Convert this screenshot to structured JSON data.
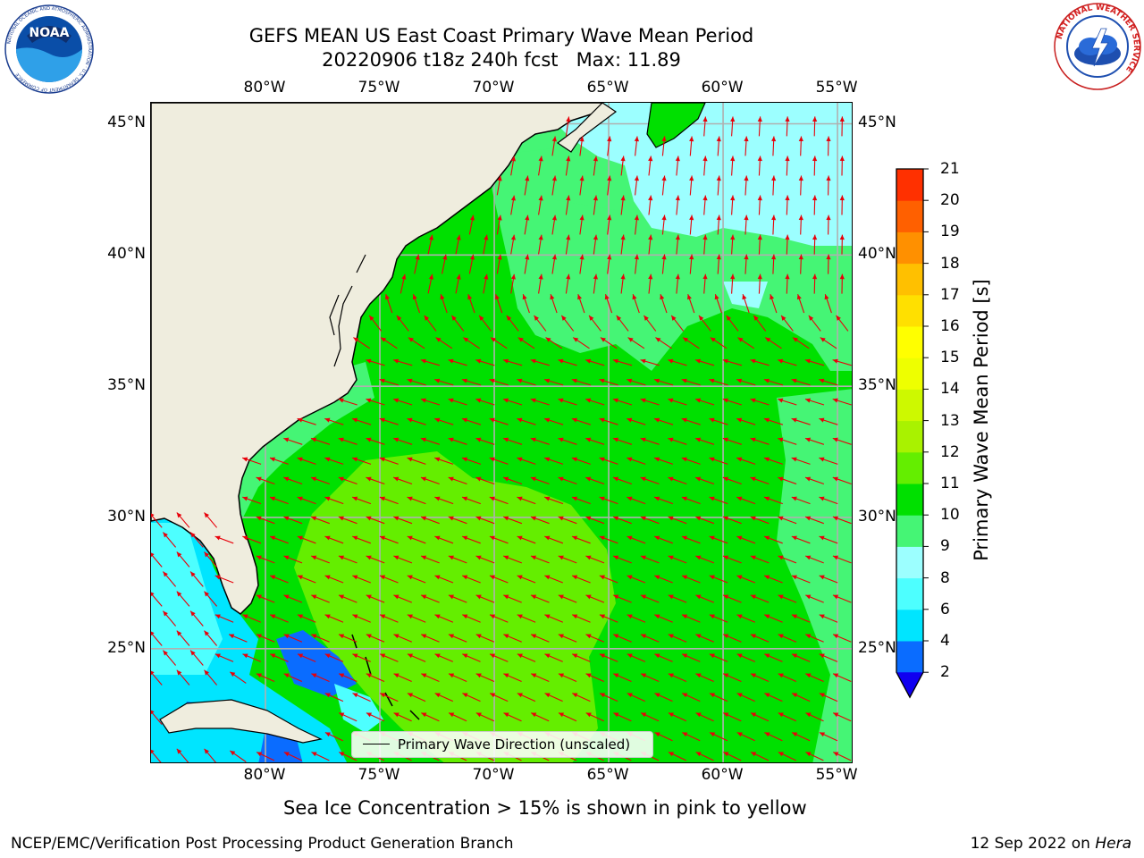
{
  "header": {
    "title_line1": "GEFS MEAN US East Coast Primary Wave Mean Period",
    "title_line2": "20220906 t18z 240h fcst   Max: 11.89"
  },
  "logos": {
    "noaa_text": "NOAA",
    "noaa_ring": "NATIONAL OCEANIC AND ATMOSPHERIC ADMINISTRATION · U.S. DEPARTMENT OF COMMERCE",
    "nws_ring": "NATIONAL WEATHER SERVICE"
  },
  "map": {
    "lon_labels": [
      "80°W",
      "75°W",
      "70°W",
      "65°W",
      "60°W",
      "55°W"
    ],
    "lat_labels": [
      "45°N",
      "40°N",
      "35°N",
      "30°N",
      "25°N"
    ],
    "lon_range": [
      -85,
      -54.3
    ],
    "lat_range": [
      20.6,
      45.8
    ],
    "colors": {
      "land": "#efedde",
      "grid": "#b0b0b0",
      "arrow": "#e8000a",
      "coast": "#000000"
    },
    "legend_label": "Primary Wave Direction (unscaled)"
  },
  "colorbar": {
    "title": "Primary Wave Mean Period [s]",
    "tick_labels": [
      "2",
      "4",
      "6",
      "8",
      "9",
      "10",
      "11",
      "12",
      "13",
      "14",
      "15",
      "16",
      "17",
      "18",
      "19",
      "20",
      "21"
    ],
    "colors": [
      "#0a6cff",
      "#00e5ff",
      "#4dffff",
      "#9cffff",
      "#45f575",
      "#00e000",
      "#64ee00",
      "#a9f200",
      "#cdf900",
      "#eeff00",
      "#ffff00",
      "#ffe000",
      "#ffc000",
      "#ff9000",
      "#ff6000",
      "#ff3000"
    ],
    "under_color": "#1000f0",
    "extend": "min"
  },
  "chart_data": {
    "type": "heatmap",
    "title": "GEFS MEAN US East Coast Primary Wave Mean Period",
    "max_value": 11.89,
    "units": "s",
    "zones": [
      {
        "region": "Gulf of Mexico / Florida Straits / Bahamas banks",
        "period_s_range": [
          2,
          8
        ]
      },
      {
        "region": "Offshore Nova Scotia / Gulf of Maine",
        "period_s_range": [
          8,
          10
        ]
      },
      {
        "region": "Mid-Atlantic to central Atlantic",
        "period_s_range": [
          10,
          11
        ]
      },
      {
        "region": "Southeast Atlantic off Florida-Georgia",
        "period_s_range": [
          11,
          11.89
        ]
      }
    ],
    "direction_pattern": "Arrows point north/north-northeast north of ~38°N, west-northwest between ~25°N and ~38°N"
  },
  "subtitle": "Sea Ice Concentration > 15% is shown in pink to yellow",
  "footer": {
    "left": "NCEP/EMC/Verification Post Processing Product Generation Branch",
    "right_prefix": "12 Sep 2022 on ",
    "right_machine": "Hera"
  }
}
